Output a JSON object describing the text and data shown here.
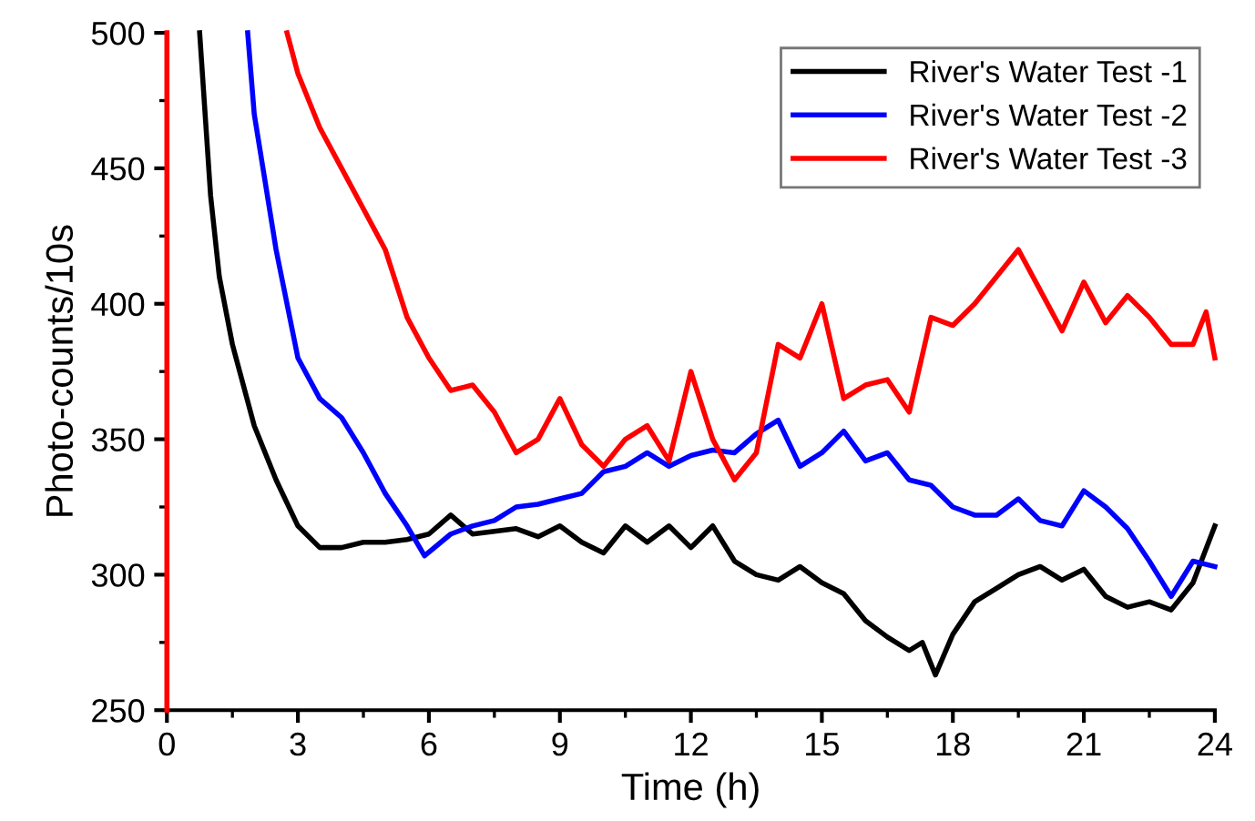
{
  "chart_data": {
    "type": "line",
    "xlabel": "Time (h)",
    "ylabel": "Photo-counts/10s",
    "xlim": [
      0,
      24
    ],
    "ylim": [
      250,
      500
    ],
    "xticks": [
      0,
      3,
      6,
      9,
      12,
      15,
      18,
      21,
      24
    ],
    "yticks": [
      250,
      300,
      350,
      400,
      450,
      500
    ],
    "grid": false,
    "legend": "top right",
    "line_style": "solid",
    "marker": "none",
    "series": [
      {
        "name": "River's Water Test -1",
        "color": "#000000",
        "x": [
          0.75,
          1.0,
          1.2,
          1.5,
          2.0,
          2.5,
          3.0,
          3.5,
          4,
          4.5,
          5,
          5.5,
          6,
          6.5,
          7,
          7.5,
          8,
          8.5,
          9,
          9.5,
          10,
          10.5,
          11,
          11.5,
          12,
          12.5,
          13,
          13.5,
          14,
          14.5,
          15,
          15.5,
          16,
          16.5,
          17,
          17.3,
          17.6,
          18,
          18.5,
          19,
          19.5,
          20,
          20.5,
          21,
          21.5,
          22,
          22.5,
          23,
          23.5,
          24
        ],
        "values": [
          500,
          440,
          410,
          385,
          355,
          335,
          318,
          310,
          310,
          312,
          312,
          313,
          315,
          322,
          315,
          316,
          317,
          314,
          318,
          312,
          308,
          318,
          312,
          318,
          310,
          318,
          305,
          300,
          298,
          303,
          297,
          293,
          283,
          277,
          272,
          275,
          263,
          278,
          290,
          295,
          300,
          303,
          298,
          302,
          292,
          288,
          290,
          287,
          297,
          318
        ]
      },
      {
        "name": "River's Water Test -2",
        "color": "#0000ff",
        "x": [
          1.85,
          2.0,
          2.5,
          3.0,
          3.5,
          4,
          4.5,
          5,
          5.5,
          5.9,
          6.5,
          7,
          7.5,
          8,
          8.5,
          9,
          9.5,
          10,
          10.5,
          11,
          11.5,
          12,
          12.5,
          13,
          13.5,
          14,
          14.5,
          15,
          15.5,
          16,
          16.5,
          17,
          17.5,
          18,
          18.5,
          19,
          19.5,
          20,
          20.5,
          21,
          21.5,
          22,
          22.5,
          23,
          23.5,
          24
        ],
        "values": [
          500,
          470,
          420,
          380,
          365,
          358,
          345,
          330,
          318,
          307,
          315,
          318,
          320,
          325,
          326,
          328,
          330,
          338,
          340,
          345,
          340,
          344,
          346,
          345,
          352,
          357,
          340,
          345,
          353,
          342,
          345,
          335,
          333,
          325,
          322,
          322,
          328,
          320,
          318,
          331,
          325,
          317,
          305,
          292,
          305,
          303
        ]
      },
      {
        "name": "River's Water Test -3",
        "color": "#ff0000",
        "x": [
          0,
          0,
          0,
          0,
          0,
          0,
          null,
          2.75,
          3.0,
          3.5,
          4,
          4.5,
          5,
          5.5,
          6,
          6.5,
          7,
          7.5,
          8,
          8.5,
          9,
          9.5,
          10,
          10.5,
          11,
          11.5,
          12,
          12.5,
          13,
          13.5,
          14,
          14.5,
          15,
          15.5,
          16,
          16.5,
          17,
          17.5,
          18,
          18.5,
          19,
          19.5,
          20,
          20.5,
          21,
          21.5,
          22,
          22.5,
          23,
          23.5,
          23.8,
          24
        ],
        "values": [
          250,
          300,
          350,
          400,
          450,
          500,
          null,
          500,
          485,
          465,
          450,
          435,
          420,
          395,
          380,
          368,
          370,
          360,
          345,
          350,
          365,
          348,
          340,
          350,
          355,
          342,
          375,
          350,
          335,
          345,
          385,
          380,
          400,
          365,
          370,
          372,
          360,
          395,
          392,
          400,
          410,
          420,
          405,
          390,
          408,
          393,
          403,
          395,
          385,
          385,
          397,
          380
        ]
      }
    ]
  }
}
